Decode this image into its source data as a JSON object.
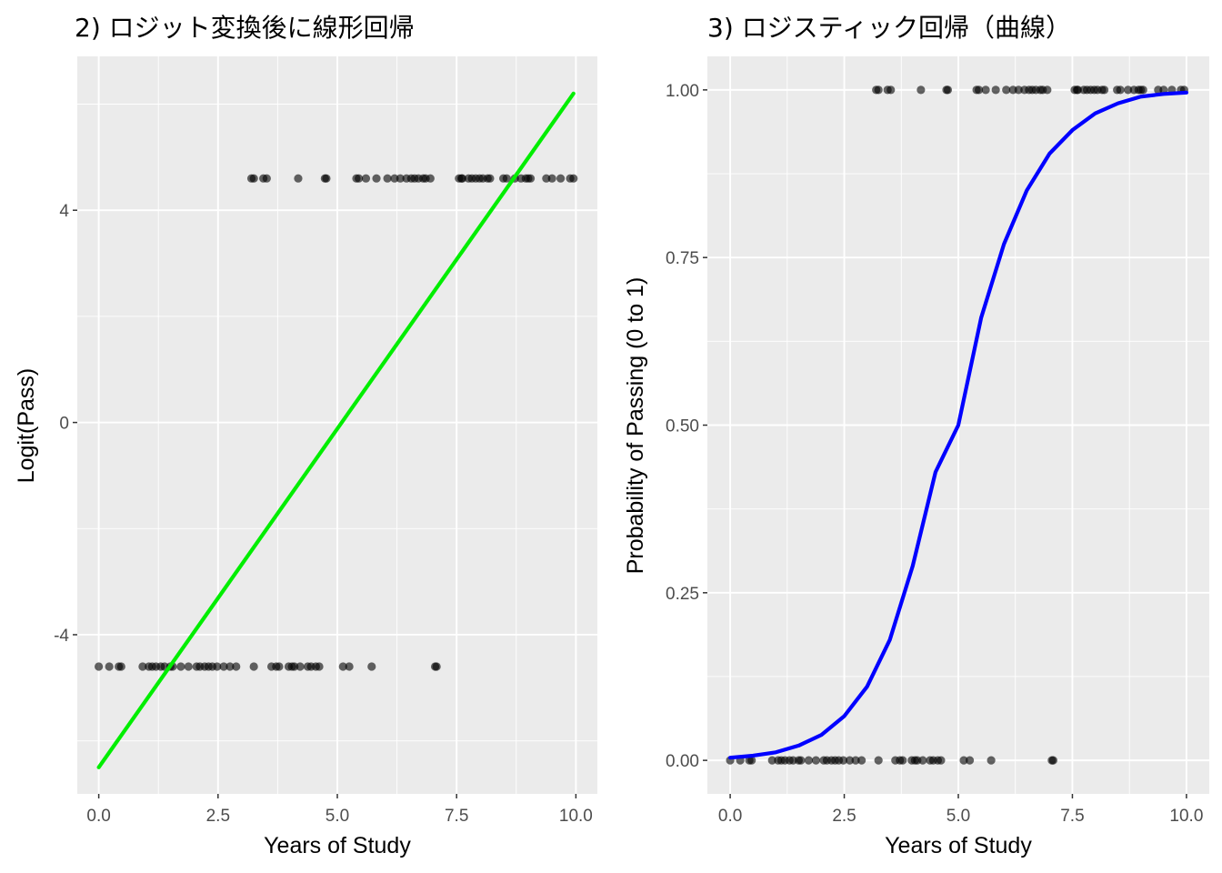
{
  "chart_data": [
    {
      "type": "scatter",
      "title": "2) ロジット変換後に線形回帰",
      "xlabel": "Years of Study",
      "ylabel": "Logit(Pass)",
      "xlim": [
        -0.45,
        10.45
      ],
      "ylim": [
        -7.0,
        6.9
      ],
      "x_ticks": [
        0,
        2.5,
        5,
        7.5,
        10
      ],
      "x_tick_labels": [
        "0.0",
        "2.5",
        "5.0",
        "7.5",
        "10.0"
      ],
      "y_ticks": [
        -4,
        0,
        4
      ],
      "y_tick_labels": [
        "-4",
        "0",
        "4"
      ],
      "grid": true,
      "background": "#ebebeb",
      "point_color": "#000000",
      "point_opacity": 0.6,
      "series": [
        {
          "type": "scatter",
          "y": 4.6,
          "x": [
            3.2,
            3.25,
            3.45,
            3.52,
            4.18,
            4.74,
            4.77,
            5.4,
            5.45,
            5.6,
            5.82,
            6.05,
            6.2,
            6.32,
            6.45,
            6.55,
            6.62,
            6.7,
            6.8,
            6.85,
            6.95,
            7.55,
            7.6,
            7.62,
            7.75,
            7.82,
            7.9,
            7.98,
            8.05,
            8.15,
            8.2,
            8.48,
            8.55,
            8.72,
            8.85,
            8.95,
            9.0,
            9.05,
            9.38,
            9.5,
            9.68,
            9.88,
            9.95
          ]
        },
        {
          "type": "scatter",
          "y": -4.6,
          "x": [
            0.0,
            0.22,
            0.42,
            0.47,
            0.92,
            1.05,
            1.12,
            1.2,
            1.3,
            1.38,
            1.5,
            1.55,
            1.72,
            1.88,
            2.05,
            2.12,
            2.22,
            2.3,
            2.38,
            2.48,
            2.62,
            2.75,
            2.88,
            3.25,
            3.62,
            3.72,
            3.78,
            3.98,
            4.05,
            4.1,
            4.22,
            4.38,
            4.45,
            4.55,
            4.62,
            5.12,
            5.25,
            5.72,
            7.05,
            7.08
          ]
        },
        {
          "type": "line",
          "name": "",
          "color": "#00ee00",
          "x": [
            0,
            9.95
          ],
          "y": [
            -6.5,
            6.2
          ]
        }
      ]
    },
    {
      "type": "scatter",
      "title": "3) ロジスティック回帰（曲線）",
      "xlabel": "Years of Study",
      "ylabel": "Probability of Passing (0 to 1)",
      "xlim": [
        -0.5,
        10.5
      ],
      "ylim": [
        -0.05,
        1.05
      ],
      "x_ticks": [
        0,
        2.5,
        5,
        7.5,
        10
      ],
      "x_tick_labels": [
        "0.0",
        "2.5",
        "5.0",
        "7.5",
        "10.0"
      ],
      "y_ticks": [
        0,
        0.25,
        0.5,
        0.75,
        1
      ],
      "y_tick_labels": [
        "0.00",
        "0.25",
        "0.50",
        "0.75",
        "1.00"
      ],
      "grid": true,
      "background": "#ebebeb",
      "point_color": "#000000",
      "point_opacity": 0.6,
      "series": [
        {
          "type": "scatter",
          "y": 1,
          "x": [
            3.2,
            3.25,
            3.45,
            3.52,
            4.18,
            4.74,
            4.77,
            5.4,
            5.45,
            5.6,
            5.82,
            6.05,
            6.2,
            6.32,
            6.45,
            6.55,
            6.62,
            6.7,
            6.8,
            6.85,
            6.95,
            7.55,
            7.6,
            7.62,
            7.75,
            7.82,
            7.9,
            7.98,
            8.05,
            8.15,
            8.2,
            8.48,
            8.55,
            8.72,
            8.85,
            8.95,
            9.0,
            9.05,
            9.38,
            9.5,
            9.68,
            9.88,
            9.95
          ]
        },
        {
          "type": "scatter",
          "y": 0,
          "x": [
            0.0,
            0.22,
            0.42,
            0.47,
            0.92,
            1.05,
            1.12,
            1.2,
            1.3,
            1.38,
            1.5,
            1.55,
            1.72,
            1.88,
            2.05,
            2.12,
            2.22,
            2.3,
            2.38,
            2.48,
            2.62,
            2.75,
            2.88,
            3.25,
            3.62,
            3.72,
            3.78,
            3.98,
            4.05,
            4.1,
            4.22,
            4.38,
            4.45,
            4.55,
            4.62,
            5.12,
            5.25,
            5.72,
            7.05,
            7.08
          ]
        },
        {
          "type": "line",
          "name": "",
          "color": "#0000ff",
          "x": [
            0,
            0.5,
            1,
            1.5,
            2,
            2.5,
            3,
            3.5,
            4,
            4.5,
            5,
            5.5,
            6,
            6.5,
            7,
            7.5,
            8,
            8.5,
            9,
            9.5,
            10
          ],
          "y": [
            0.004,
            0.007,
            0.012,
            0.022,
            0.038,
            0.066,
            0.11,
            0.18,
            0.29,
            0.43,
            0.5,
            0.66,
            0.77,
            0.85,
            0.905,
            0.94,
            0.965,
            0.98,
            0.99,
            0.994,
            0.996
          ]
        }
      ]
    }
  ]
}
